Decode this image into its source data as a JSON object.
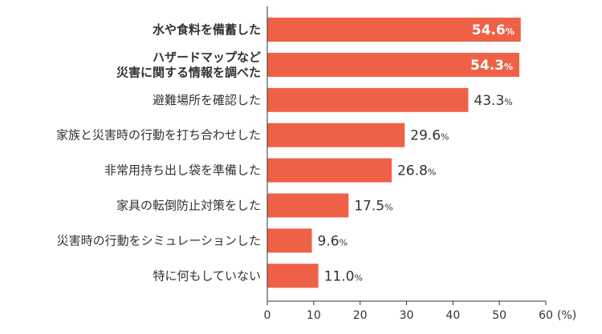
{
  "colors": {
    "bar": "#ee6146",
    "highlight_text": "#ee6146",
    "text": "#333333",
    "axis": "#333333",
    "value_on_bar": "#ffffff"
  },
  "chart_data": {
    "type": "bar",
    "orientation": "horizontal",
    "categories": [
      [
        "水や食料を備蓄した"
      ],
      [
        "ハザードマップなど",
        "災害に関する情報を調べた"
      ],
      [
        "避難場所を確認した"
      ],
      [
        "家族と災害時の行動を打ち合わせした"
      ],
      [
        "非常用持ち出し袋を準備した"
      ],
      [
        "家具の転倒防止対策をした"
      ],
      [
        "災害時の行動をシミュレーションした"
      ],
      [
        "特に何もしていない"
      ]
    ],
    "values": [
      54.6,
      54.3,
      43.3,
      29.6,
      26.8,
      17.5,
      9.6,
      11.0
    ],
    "value_labels": [
      "54.6",
      "54.3",
      "43.3",
      "29.6",
      "26.8",
      "17.5",
      "9.6",
      "11.0"
    ],
    "value_unit": "%",
    "highlighted": [
      true,
      true,
      false,
      false,
      false,
      false,
      false,
      false
    ],
    "xlim": [
      0,
      60
    ],
    "xticks": [
      "0",
      "10",
      "20",
      "30",
      "40",
      "50",
      "60"
    ],
    "xunit": "(%)",
    "grid": false
  }
}
